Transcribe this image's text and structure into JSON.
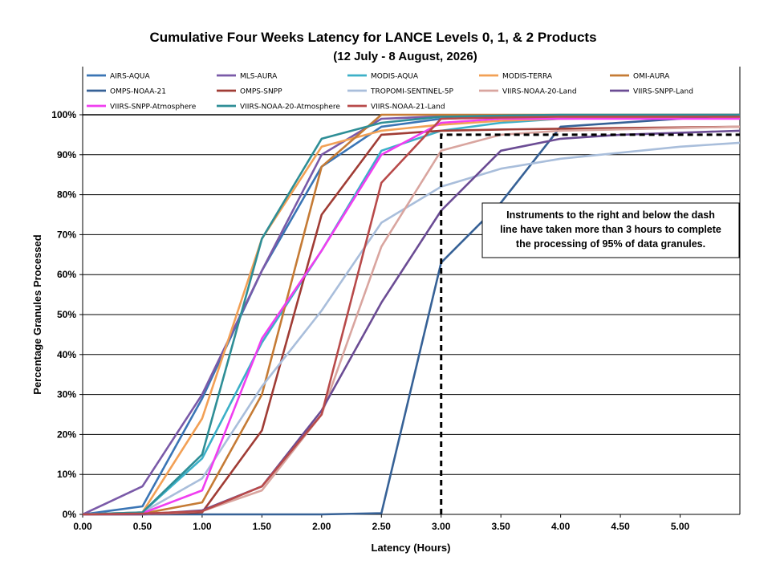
{
  "chart_data": {
    "type": "line",
    "title": "Cumulative Four Weeks Latency  for LANCE Levels 0, 1, & 2 Products",
    "subtitle": "(12  July   -  8  August,  2026)",
    "xlabel": "Latency (Hours)",
    "ylabel": "Percentage Granules Processed",
    "xlim": [
      0,
      5.5
    ],
    "ylim": [
      0,
      100
    ],
    "x_ticks": [
      "0.00",
      "0.50",
      "1.00",
      "1.50",
      "2.00",
      "2.50",
      "3.00",
      "3.50",
      "4.00",
      "4.50",
      "5.00"
    ],
    "y_ticks": [
      "0%",
      "10%",
      "20%",
      "30%",
      "40%",
      "50%",
      "60%",
      "70%",
      "80%",
      "90%",
      "100%"
    ],
    "grid": true,
    "legend_position": "top",
    "annotation": {
      "lines": [
        "Instruments to the right and below the dash",
        "line have taken more than 3 hours to complete",
        "the processing of 95% of data granules."
      ],
      "threshold_x": 3.0,
      "threshold_y": 95
    },
    "series": [
      {
        "name": "AIRS-AQUA",
        "color": "#3A75B5",
        "x": [
          0,
          0.5,
          1,
          1.5,
          2,
          2.5,
          3,
          3.5,
          4,
          5.5
        ],
        "y": [
          0,
          2,
          29,
          61,
          87,
          97,
          99,
          99.5,
          99.8,
          100
        ]
      },
      {
        "name": "MLS-AURA",
        "color": "#7A5AA8",
        "x": [
          0,
          0.5,
          1,
          1.5,
          2,
          2.5,
          3,
          3.5,
          4,
          5.5
        ],
        "y": [
          0,
          7,
          30,
          61,
          90,
          99,
          99.6,
          99.8,
          99.9,
          100
        ]
      },
      {
        "name": "MODIS-AQUA",
        "color": "#3CB0C8",
        "x": [
          0,
          0.5,
          1,
          1.5,
          2,
          2.5,
          3,
          3.5,
          4,
          5.5
        ],
        "y": [
          0,
          0.5,
          14,
          43,
          66,
          91,
          96,
          98,
          99,
          99.5
        ]
      },
      {
        "name": "MODIS-TERRA",
        "color": "#F2A055",
        "x": [
          0,
          0.5,
          1,
          1.5,
          2,
          2.5,
          3,
          3.5,
          4,
          5.5
        ],
        "y": [
          0,
          0.5,
          24,
          69,
          92,
          96,
          97.5,
          98.5,
          99,
          99.5
        ]
      },
      {
        "name": "OMI-AURA",
        "color": "#C57B35",
        "x": [
          0,
          0.5,
          1,
          1.5,
          2,
          2.5,
          3,
          3.5,
          4,
          5.5
        ],
        "y": [
          0,
          0.2,
          3,
          30,
          87,
          100,
          100,
          100,
          100,
          100
        ]
      },
      {
        "name": "OMPS-NOAA-21",
        "color": "#366196",
        "x": [
          0,
          0.5,
          1,
          1.5,
          2,
          2.5,
          3,
          3.5,
          4,
          5.5
        ],
        "y": [
          0,
          0,
          0,
          0,
          0,
          0.3,
          63,
          78,
          97,
          100
        ]
      },
      {
        "name": "OMPS-SNPP",
        "color": "#A03C35",
        "x": [
          0,
          0.5,
          1,
          1.5,
          2,
          2.5,
          3,
          3.5,
          4,
          5.5
        ],
        "y": [
          0,
          0,
          0.5,
          21,
          75,
          95,
          96,
          96.3,
          96.5,
          97
        ]
      },
      {
        "name": "TROPOMI-SENTINEL-5P",
        "color": "#A9BEDB",
        "x": [
          0,
          0.5,
          1,
          1.5,
          2,
          2.5,
          3,
          3.5,
          4,
          4.5,
          5,
          5.5
        ],
        "y": [
          0,
          0.5,
          9,
          32,
          51,
          73,
          82,
          86.5,
          89,
          90.5,
          92,
          93
        ]
      },
      {
        "name": "VIIRS-NOAA-20-Land",
        "color": "#D9A59F",
        "x": [
          0,
          0.5,
          1,
          1.5,
          2,
          2.5,
          3,
          3.5,
          4,
          5.5
        ],
        "y": [
          0,
          0,
          0.8,
          6,
          25,
          67,
          91,
          95,
          96,
          97
        ]
      },
      {
        "name": "VIIRS-SNPP-Land",
        "color": "#6B4C94",
        "x": [
          0,
          0.5,
          1,
          1.5,
          2,
          2.5,
          3,
          3.5,
          4,
          4.5,
          5,
          5.5
        ],
        "y": [
          0,
          0,
          1,
          7,
          26,
          53,
          76,
          91,
          94,
          95,
          95.5,
          96
        ]
      },
      {
        "name": "VIIRS-SNPP-Atmosphere",
        "color": "#F03EF0",
        "x": [
          0,
          0.5,
          1,
          1.5,
          2,
          2.5,
          3,
          3.5,
          4,
          5.5
        ],
        "y": [
          0,
          0.3,
          6,
          44,
          66,
          90,
          98,
          99,
          99,
          99
        ]
      },
      {
        "name": "VIIRS-NOAA-20-Atmosphere",
        "color": "#2E8E96",
        "x": [
          0,
          0.5,
          1,
          1.5,
          2,
          2.5,
          3,
          3.5,
          4,
          5.5
        ],
        "y": [
          0,
          0.5,
          15,
          69,
          94,
          98,
          99.5,
          99.8,
          100,
          100
        ]
      },
      {
        "name": "VIIRS-NOAA-21-Land",
        "color": "#B84A4A",
        "x": [
          0,
          0.5,
          1,
          1.5,
          2,
          2.5,
          3,
          3.5,
          4,
          5.5
        ],
        "y": [
          0,
          0.2,
          0.8,
          7,
          25,
          83,
          99,
          99.3,
          99.5,
          99.5
        ]
      }
    ]
  }
}
